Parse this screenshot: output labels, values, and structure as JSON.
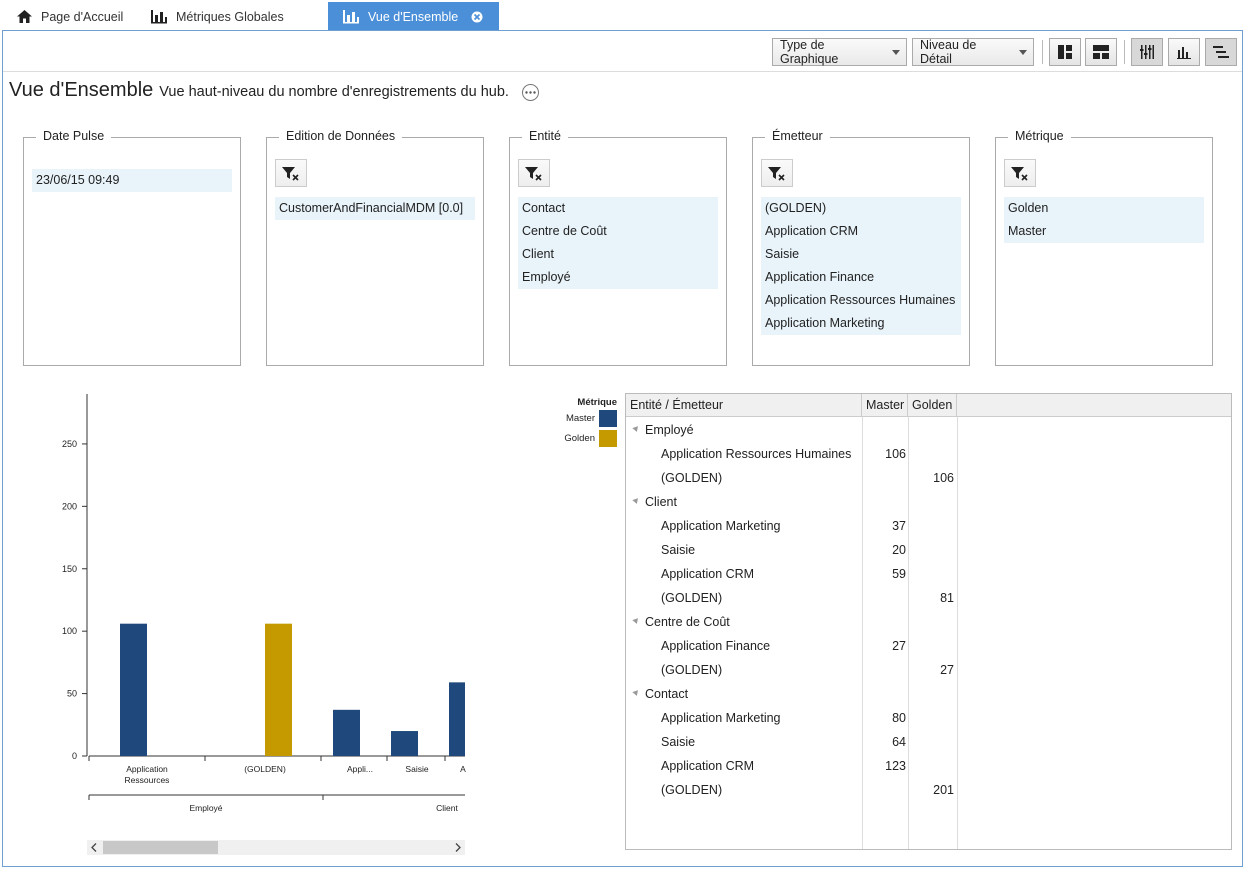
{
  "tabs": [
    {
      "label": "Page d'Accueil",
      "icon": "home-icon"
    },
    {
      "label": "Métriques Globales",
      "icon": "bar-chart-icon"
    },
    {
      "label": "Vue d'Ensemble",
      "icon": "bar-chart-icon",
      "active": true
    }
  ],
  "toolbar": {
    "chart_type_label": "Type de Graphique",
    "detail_level_label": "Niveau de Détail"
  },
  "header": {
    "title": "Vue d'Ensemble",
    "subtitle": "Vue haut-niveau du nombre d'enregistrements du hub."
  },
  "filters": [
    {
      "legend": "Date Pulse",
      "has_clear": false,
      "items": [
        "23/06/15 09:49"
      ]
    },
    {
      "legend": "Edition de Données",
      "has_clear": true,
      "items": [
        "CustomerAndFinancialMDM [0.0]"
      ]
    },
    {
      "legend": "Entité",
      "has_clear": true,
      "items": [
        "Contact",
        "Centre de Coût",
        "Client",
        "Employé"
      ]
    },
    {
      "legend": "Émetteur",
      "has_clear": true,
      "items": [
        "(GOLDEN)",
        "Application CRM",
        "Saisie",
        "Application Finance",
        "Application Ressources Humaines",
        "Application Marketing"
      ]
    },
    {
      "legend": "Métrique",
      "has_clear": true,
      "items": [
        "Golden",
        "Master"
      ]
    }
  ],
  "colors": {
    "master": "#1f497d",
    "golden": "#c49a00",
    "accent": "#4a8fd8"
  },
  "chart_data": {
    "type": "bar",
    "legend_title": "Métrique",
    "legend": [
      {
        "name": "Master",
        "color": "#1f497d"
      },
      {
        "name": "Golden",
        "color": "#c49a00"
      }
    ],
    "ylim": [
      0,
      290
    ],
    "yticks": [
      0,
      50,
      100,
      150,
      200,
      250
    ],
    "categories": [
      "Application Ressources",
      "(GOLDEN)",
      "Appli...",
      "Saisie",
      "A"
    ],
    "groups": [
      "Employé",
      "Client"
    ],
    "bars": [
      {
        "category": "Application Ressources",
        "series": "Master",
        "value": 106
      },
      {
        "category": "(GOLDEN)",
        "series": "Golden",
        "value": 106
      },
      {
        "category": "Appli...",
        "series": "Master",
        "value": 37
      },
      {
        "category": "Saisie",
        "series": "Master",
        "value": 20
      },
      {
        "category": "A",
        "series": "Master",
        "value": 59
      }
    ]
  },
  "table": {
    "headers": [
      "Entité / Émetteur",
      "Master",
      "Golden"
    ],
    "rows": [
      {
        "level": "group",
        "label": "Employé",
        "master": "",
        "golden": ""
      },
      {
        "level": "leaf",
        "label": "Application Ressources Humaines",
        "master": "106",
        "golden": ""
      },
      {
        "level": "leaf",
        "label": "(GOLDEN)",
        "master": "",
        "golden": "106"
      },
      {
        "level": "group",
        "label": "Client",
        "master": "",
        "golden": ""
      },
      {
        "level": "leaf",
        "label": "Application Marketing",
        "master": "37",
        "golden": ""
      },
      {
        "level": "leaf",
        "label": "Saisie",
        "master": "20",
        "golden": ""
      },
      {
        "level": "leaf",
        "label": "Application CRM",
        "master": "59",
        "golden": ""
      },
      {
        "level": "leaf",
        "label": "(GOLDEN)",
        "master": "",
        "golden": "81"
      },
      {
        "level": "group",
        "label": "Centre de Coût",
        "master": "",
        "golden": ""
      },
      {
        "level": "leaf",
        "label": "Application Finance",
        "master": "27",
        "golden": ""
      },
      {
        "level": "leaf",
        "label": "(GOLDEN)",
        "master": "",
        "golden": "27"
      },
      {
        "level": "group",
        "label": "Contact",
        "master": "",
        "golden": ""
      },
      {
        "level": "leaf",
        "label": "Application Marketing",
        "master": "80",
        "golden": ""
      },
      {
        "level": "leaf",
        "label": "Saisie",
        "master": "64",
        "golden": ""
      },
      {
        "level": "leaf",
        "label": "Application CRM",
        "master": "123",
        "golden": ""
      },
      {
        "level": "leaf",
        "label": "(GOLDEN)",
        "master": "",
        "golden": "201"
      }
    ]
  }
}
